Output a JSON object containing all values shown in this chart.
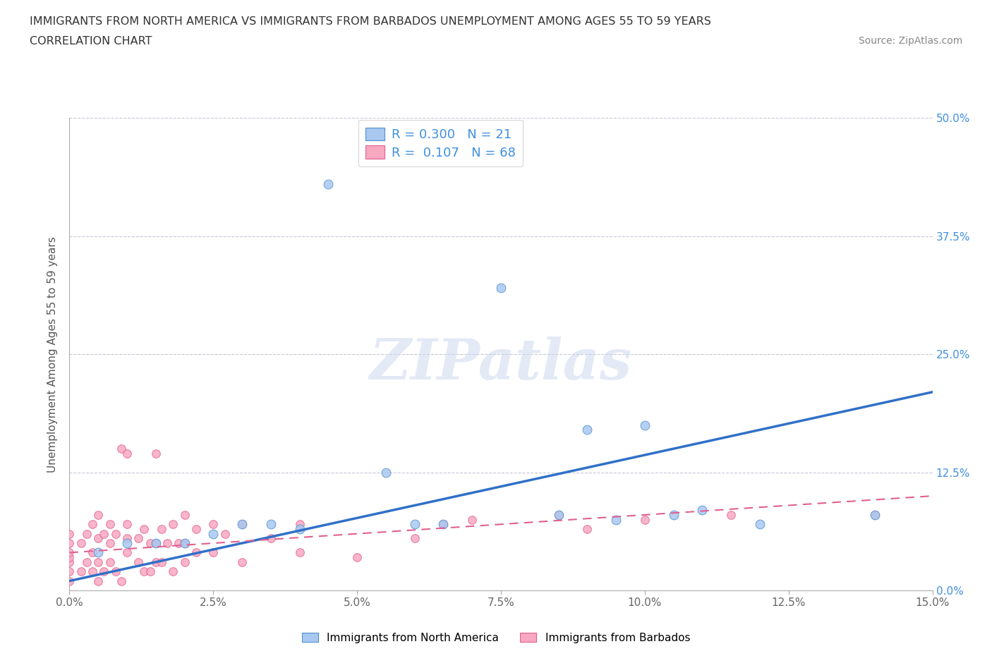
{
  "title_line1": "IMMIGRANTS FROM NORTH AMERICA VS IMMIGRANTS FROM BARBADOS UNEMPLOYMENT AMONG AGES 55 TO 59 YEARS",
  "title_line2": "CORRELATION CHART",
  "source": "Source: ZipAtlas.com",
  "ylabel": "Unemployment Among Ages 55 to 59 years",
  "xlim": [
    0.0,
    0.15
  ],
  "ylim": [
    0.0,
    0.5
  ],
  "xtick_vals": [
    0.0,
    0.025,
    0.05,
    0.075,
    0.1,
    0.125,
    0.15
  ],
  "xtick_labs": [
    "0.0%",
    "2.5%",
    "5.0%",
    "7.5%",
    "10.0%",
    "12.5%",
    "15.0%"
  ],
  "ytick_vals": [
    0.0,
    0.125,
    0.25,
    0.375,
    0.5
  ],
  "ytick_labs": [
    "0.0%",
    "12.5%",
    "25.0%",
    "37.5%",
    "50.0%"
  ],
  "color_blue": "#a8c8f0",
  "color_pink": "#f8a8c0",
  "edge_blue": "#5090d0",
  "edge_pink": "#e06090",
  "trend_blue_color": "#3070c8",
  "trend_pink_color": "#e06090",
  "watermark": "ZIPatlas",
  "legend_R_blue": "0.300",
  "legend_N_blue": "21",
  "legend_R_pink": "0.107",
  "legend_N_pink": "68",
  "legend_label_blue": "Immigrants from North America",
  "legend_label_pink": "Immigrants from Barbados",
  "blue_points_x": [
    0.005,
    0.01,
    0.015,
    0.02,
    0.025,
    0.03,
    0.035,
    0.04,
    0.045,
    0.055,
    0.06,
    0.065,
    0.075,
    0.085,
    0.09,
    0.095,
    0.1,
    0.105,
    0.11,
    0.12,
    0.14
  ],
  "blue_points_y": [
    0.04,
    0.05,
    0.05,
    0.05,
    0.06,
    0.07,
    0.07,
    0.065,
    0.43,
    0.125,
    0.07,
    0.07,
    0.32,
    0.08,
    0.17,
    0.075,
    0.175,
    0.08,
    0.085,
    0.07,
    0.08
  ],
  "pink_points_x": [
    0.0,
    0.0,
    0.0,
    0.0,
    0.0,
    0.0,
    0.0,
    0.002,
    0.002,
    0.003,
    0.003,
    0.004,
    0.004,
    0.004,
    0.005,
    0.005,
    0.005,
    0.005,
    0.006,
    0.006,
    0.007,
    0.007,
    0.007,
    0.008,
    0.008,
    0.009,
    0.009,
    0.01,
    0.01,
    0.01,
    0.01,
    0.012,
    0.012,
    0.013,
    0.013,
    0.014,
    0.014,
    0.015,
    0.015,
    0.015,
    0.016,
    0.016,
    0.017,
    0.018,
    0.018,
    0.019,
    0.02,
    0.02,
    0.02,
    0.022,
    0.022,
    0.025,
    0.025,
    0.027,
    0.03,
    0.03,
    0.035,
    0.04,
    0.04,
    0.05,
    0.06,
    0.065,
    0.07,
    0.085,
    0.09,
    0.1,
    0.115,
    0.14
  ],
  "pink_points_y": [
    0.01,
    0.02,
    0.03,
    0.035,
    0.04,
    0.05,
    0.06,
    0.02,
    0.05,
    0.03,
    0.06,
    0.02,
    0.04,
    0.07,
    0.01,
    0.03,
    0.055,
    0.08,
    0.02,
    0.06,
    0.03,
    0.05,
    0.07,
    0.02,
    0.06,
    0.01,
    0.15,
    0.04,
    0.055,
    0.07,
    0.145,
    0.03,
    0.055,
    0.02,
    0.065,
    0.02,
    0.05,
    0.03,
    0.05,
    0.145,
    0.03,
    0.065,
    0.05,
    0.02,
    0.07,
    0.05,
    0.03,
    0.05,
    0.08,
    0.04,
    0.065,
    0.04,
    0.07,
    0.06,
    0.03,
    0.07,
    0.055,
    0.04,
    0.07,
    0.035,
    0.055,
    0.07,
    0.075,
    0.08,
    0.065,
    0.075,
    0.08,
    0.08
  ],
  "trend_blue_x0": 0.0,
  "trend_blue_y0": 0.01,
  "trend_blue_x1": 0.15,
  "trend_blue_y1": 0.21,
  "trend_pink_x0": 0.0,
  "trend_pink_y0": 0.04,
  "trend_pink_x1": 0.15,
  "trend_pink_y1": 0.1
}
